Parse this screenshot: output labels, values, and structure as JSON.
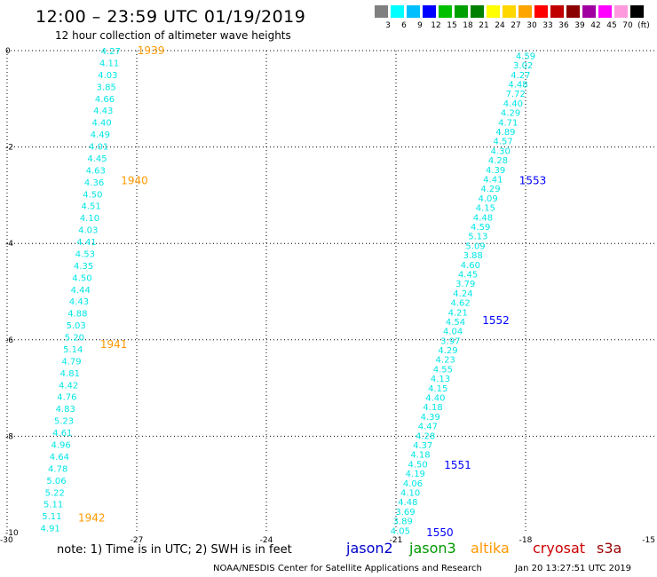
{
  "header": {
    "title": "12:00 – 23:59 UTC 01/19/2019",
    "subtitle": "12 hour collection of altimeter wave heights"
  },
  "color_scale": {
    "colors": [
      "#808080",
      "#00ffff",
      "#00bfff",
      "#0000ff",
      "#00c000",
      "#00a000",
      "#008000",
      "#ffff00",
      "#ffd700",
      "#ffa500",
      "#ff0000",
      "#c00000",
      "#8b0000",
      "#a000a0",
      "#ff00ff",
      "#ff99dd",
      "#000000"
    ],
    "labels": [
      "3",
      "6",
      "9",
      "12",
      "15",
      "18",
      "21",
      "24",
      "27",
      "30",
      "33",
      "36",
      "39",
      "42",
      "45",
      "70",
      "(ft)"
    ]
  },
  "axes": {
    "x_ticks": [
      "-30",
      "-27",
      "-24",
      "-21",
      "-18",
      "-15"
    ],
    "y_ticks": [
      "0",
      "-2",
      "-4",
      "-6",
      "-8",
      "-10"
    ]
  },
  "tracks": [
    {
      "satellite": "altika",
      "color": "#ff9900",
      "start_lon": -27.6,
      "start_lat": 0.0,
      "end_lon": -29.0,
      "end_lat": -9.9,
      "values": [
        "4.27",
        "4.11",
        "4.03",
        "3.85",
        "4.66",
        "4.43",
        "4.40",
        "4.49",
        "4.01",
        "4.45",
        "4.63",
        "4.36",
        "4.50",
        "4.51",
        "4.10",
        "4.03",
        "4.41",
        "4.53",
        "4.35",
        "4.50",
        "4.44",
        "4.43",
        "4.88",
        "5.03",
        "5.20",
        "5.14",
        "4.79",
        "4.81",
        "4.42",
        "4.76",
        "4.83",
        "5.23",
        "4.61",
        "4.96",
        "4.64",
        "4.78",
        "5.06",
        "5.22",
        "5.11",
        "5.11",
        "4.91"
      ],
      "time_labels": [
        {
          "text": "1939",
          "lat": 0.0
        },
        {
          "text": "1940",
          "lat": -2.7
        },
        {
          "text": "1941",
          "lat": -6.1
        },
        {
          "text": "1942",
          "lat": -9.7
        }
      ]
    },
    {
      "satellite": "jason2",
      "color": "#0000ff",
      "start_lon": -18.0,
      "start_lat": -0.1,
      "end_lon": -20.9,
      "end_lat": -9.95,
      "values": [
        "4.59",
        "3.02",
        "4.27",
        "4.48",
        "7.72",
        "4.40",
        "4.29",
        "4.71",
        "4.89",
        "4.57",
        "4.30",
        "4.28",
        "4.39",
        "4.41",
        "4.29",
        "4.09",
        "4.15",
        "4.48",
        "4.59",
        "5.13",
        "5.09",
        "3.88",
        "4.60",
        "4.45",
        "3.79",
        "4.24",
        "4.62",
        "4.21",
        "4.54",
        "4.04",
        "3.97",
        "4.29",
        "4.23",
        "4.55",
        "4.13",
        "4.15",
        "4.40",
        "4.18",
        "4.39",
        "4.47",
        "4.28",
        "4.37",
        "4.18",
        "4.50",
        "4.19",
        "4.06",
        "4.10",
        "4.48",
        "3.69",
        "3.89",
        "4.05"
      ],
      "time_labels": [
        {
          "text": "1553",
          "lat": -2.7
        },
        {
          "text": "1552",
          "lat": -5.6
        },
        {
          "text": "1551",
          "lat": -8.6
        },
        {
          "text": "1550",
          "lat": -10.0
        }
      ]
    }
  ],
  "footer": {
    "note": "note: 1) Time is in UTC; 2) SWH is in feet",
    "missions": [
      {
        "name": "jason2",
        "color": "#0000cc"
      },
      {
        "name": "jason3",
        "color": "#009900"
      },
      {
        "name": "altika",
        "color": "#ff9900"
      },
      {
        "name": "cryosat",
        "color": "#cc0000"
      },
      {
        "name": "s3a",
        "color": "#990000"
      }
    ],
    "credit": "NOAA/NESDIS Center for Satellite Applications and Research",
    "timestamp": "Jan 20 13:27:51 UTC 2019"
  }
}
